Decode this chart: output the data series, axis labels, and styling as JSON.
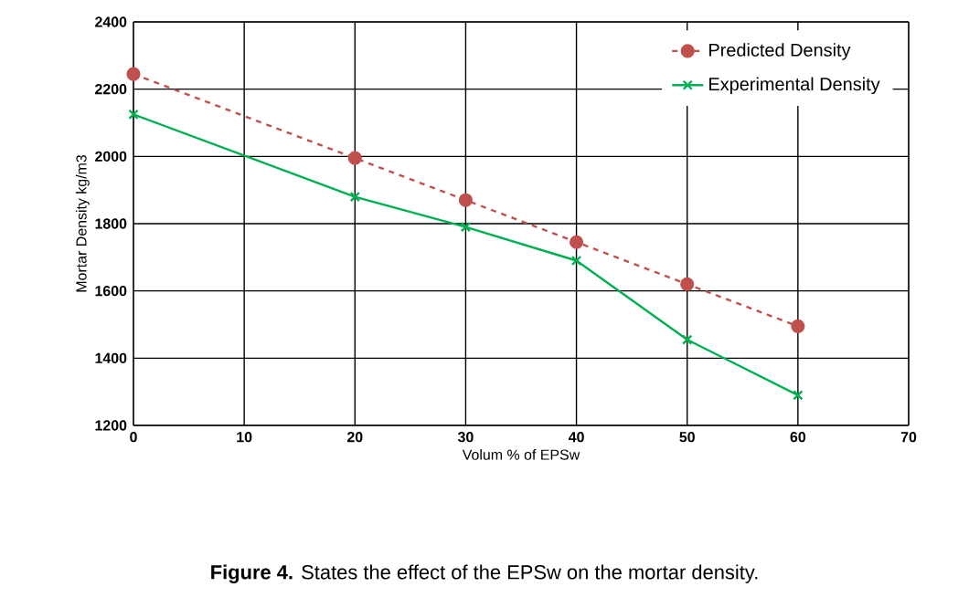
{
  "chart_data": {
    "type": "line",
    "xlabel": "Volum % of EPSw",
    "ylabel": "Mortar Density  kg/m3",
    "annotations": [
      "**Figure 4.** States the effect of the EPSw on the mortar density."
    ],
    "x": [
      0,
      20,
      30,
      40,
      50,
      60
    ],
    "series": [
      {
        "name": "Predicted Density",
        "color": "#c0504d",
        "marker": "circle",
        "line_style": "dashed",
        "values": [
          2245,
          1995,
          1870,
          1745,
          1620,
          1495
        ]
      },
      {
        "name": "Experimental Density",
        "color": "#00b050",
        "marker": "cross",
        "line_style": "solid",
        "values": [
          2125,
          1880,
          1790,
          1690,
          1455,
          1290
        ]
      }
    ],
    "xlim": [
      0,
      70
    ],
    "xticks": [
      0,
      10,
      20,
      30,
      40,
      50,
      60,
      70
    ],
    "ylim": [
      1200,
      2400
    ],
    "yticks": [
      1200,
      1400,
      1600,
      1800,
      2000,
      2200,
      2400
    ],
    "grid": true,
    "legend": "top right"
  }
}
